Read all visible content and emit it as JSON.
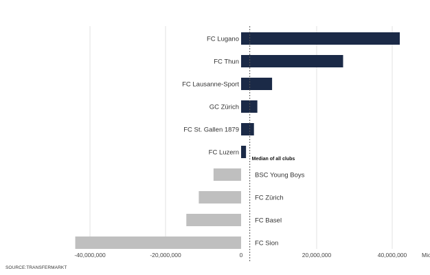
{
  "chart_data": {
    "type": "bar",
    "orientation": "horizontal",
    "categories": [
      "FC Lugano",
      "FC Thun",
      "FC Lausanne-Sport",
      "GC Zürich",
      "FC St. Gallen 1879",
      "FC Luzern",
      "BSC Young Boys",
      "FC Zürich",
      "FC Basel",
      "FC Sion"
    ],
    "values": [
      42000000,
      27000000,
      8200000,
      4300000,
      3400000,
      1300000,
      -7300000,
      -11200000,
      -14500000,
      -43900000
    ],
    "xlim": [
      -40000000,
      40000000
    ],
    "xticks": [
      "-40,000,000",
      "-20,000,000",
      "0",
      "20,000,000",
      "40,000,000"
    ],
    "xtick_values": [
      -40000000,
      -20000000,
      0,
      20000000,
      40000000
    ],
    "unit_label": "Mio CHF",
    "median_value": 2300000,
    "median_label": "Median of all clubs",
    "colors": {
      "positive": "#1b2a47",
      "negative": "#bfbfbf"
    },
    "grid": true
  },
  "source": "SOURCE:TRANSFERMARKT"
}
